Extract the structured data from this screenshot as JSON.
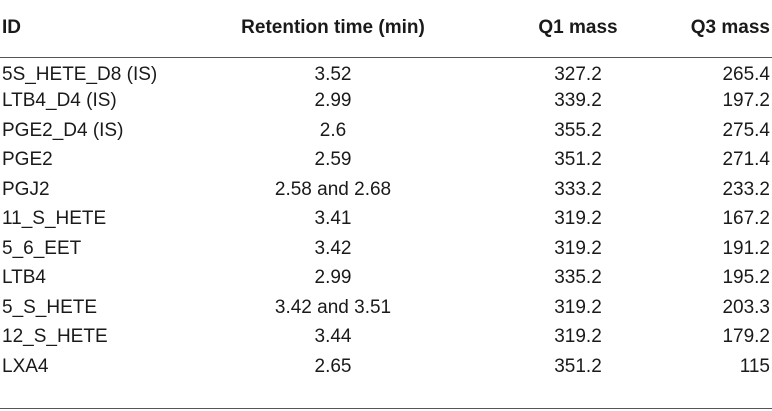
{
  "table": {
    "headers": {
      "id": "ID",
      "retention_time": "Retention time (min)",
      "q1_mass": "Q1 mass",
      "q3_mass": "Q3 mass"
    },
    "rows": [
      {
        "id": "5S_HETE_D8 (IS)",
        "rt": "3.52",
        "q1": "327.2",
        "q3": "265.4"
      },
      {
        "id": "LTB4_D4 (IS)",
        "rt": "2.99",
        "q1": "339.2",
        "q3": "197.2"
      },
      {
        "id": "PGE2_D4 (IS)",
        "rt": "2.6",
        "q1": "355.2",
        "q3": "275.4"
      },
      {
        "id": "PGE2",
        "rt": "2.59",
        "q1": "351.2",
        "q3": "271.4"
      },
      {
        "id": "PGJ2",
        "rt": "2.58 and 2.68",
        "q1": "333.2",
        "q3": "233.2"
      },
      {
        "id": "11_S_HETE",
        "rt": "3.41",
        "q1": "319.2",
        "q3": "167.2"
      },
      {
        "id": "5_6_EET",
        "rt": "3.42",
        "q1": "319.2",
        "q3": "191.2"
      },
      {
        "id": "LTB4",
        "rt": "2.99",
        "q1": "335.2",
        "q3": "195.2"
      },
      {
        "id": "5_S_HETE",
        "rt": "3.42 and 3.51",
        "q1": "319.2",
        "q3": "203.3"
      },
      {
        "id": "12_S_HETE",
        "rt": "3.44",
        "q1": "319.2",
        "q3": "179.2"
      },
      {
        "id": "LXA4",
        "rt": "2.65",
        "q1": "351.2",
        "q3": "115"
      }
    ]
  }
}
